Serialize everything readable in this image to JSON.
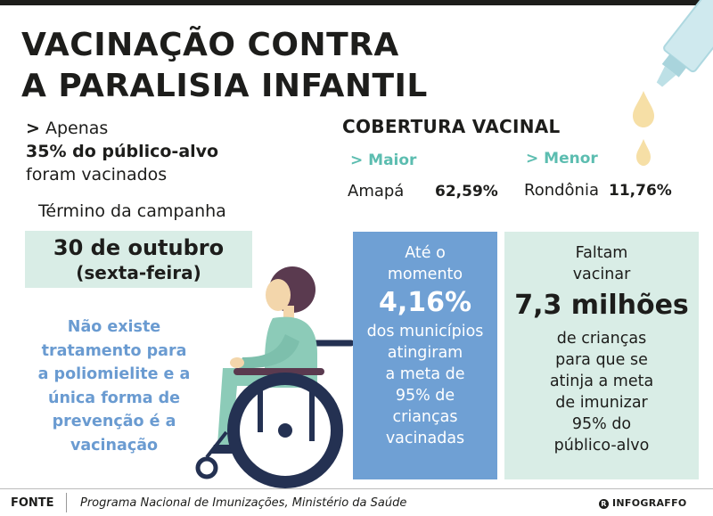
{
  "title": {
    "line1": "VACINAÇÃO CONTRA",
    "line2": "A PARALISIA INFANTIL"
  },
  "lead": {
    "arrow": ">",
    "line1": "Apenas",
    "line2": "35% do público-alvo",
    "line3": "foram vacinados"
  },
  "campaign": {
    "label": "Término da campanha",
    "date": "30 de outubro",
    "weekday": "(sexta-feira)"
  },
  "note": {
    "lines": [
      "Não existe",
      "tratamento para",
      "a poliomielite e a",
      "única forma de",
      "prevenção é a",
      "vacinação"
    ]
  },
  "coverage": {
    "title": "COBERTURA VACINAL",
    "highest": {
      "label": "> Maior",
      "state": "Amapá",
      "value": "62,59%"
    },
    "lowest": {
      "label": "> Menor",
      "state": "Rondônia",
      "value": "11,76%"
    }
  },
  "municipalities": {
    "lines_top": [
      "Até o",
      "momento"
    ],
    "value": "4,16%",
    "lines_bottom": [
      "dos municípios",
      "atingiram",
      "a meta de",
      "95% de",
      "crianças",
      "vacinadas"
    ]
  },
  "remaining": {
    "lines_top": [
      "Faltam",
      "vacinar"
    ],
    "value": "7,3 milhões",
    "lines_bottom": [
      "de crianças",
      "para que se",
      "atinja a meta",
      "de imunizar",
      "95% do",
      "público-alvo"
    ]
  },
  "footer": {
    "label": "FONTE",
    "source": "Programa Nacional de Imunizações, Ministério da Saúde",
    "brand_mark": "R",
    "brand": "INFOGRAFFO"
  },
  "colors": {
    "teal": "#5cbdb0",
    "blue": "#6fa0d4",
    "mint": "#d9ede6",
    "drop": "#f6dfa6",
    "wheel": "#243152",
    "hair": "#5a3a4f",
    "shirt": "#8ccbb8",
    "skin": "#f3d6ab"
  },
  "icons": [
    "vaccine-vial-icon",
    "vaccine-drop-icon",
    "wheelchair-child-illustration"
  ]
}
